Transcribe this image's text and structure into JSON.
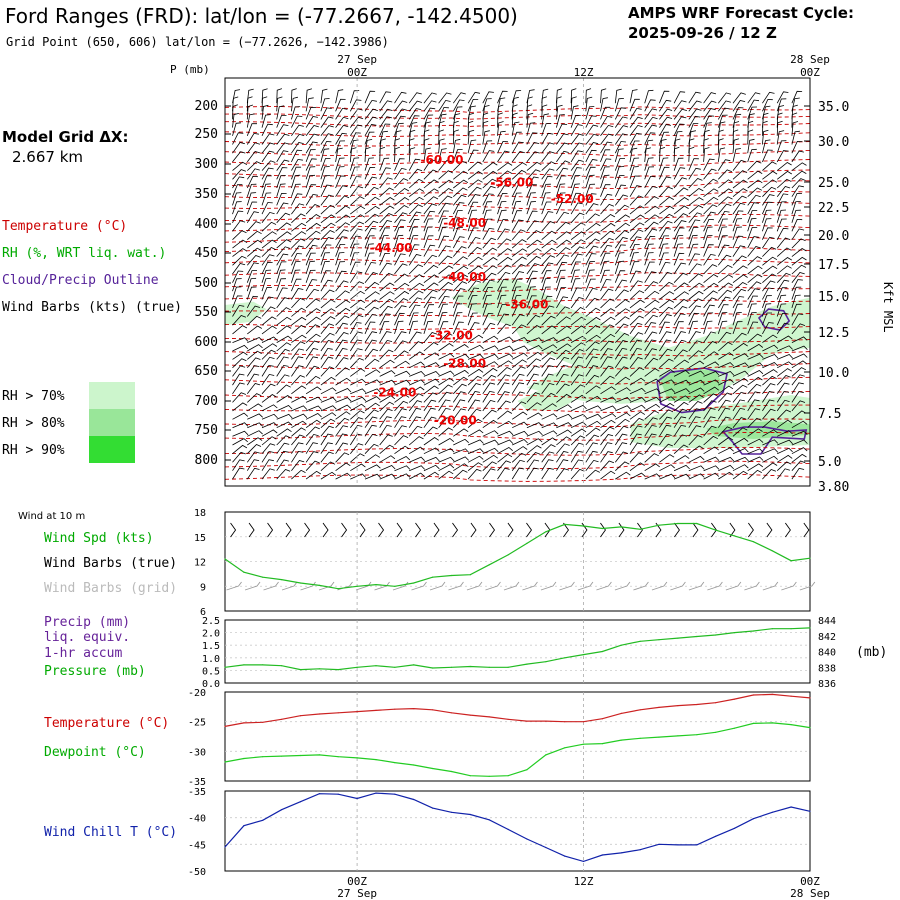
{
  "header": {
    "title": "Ford Ranges (FRD):  lat/lon = (-77.2667, -142.4500)",
    "grid_point": "Grid Point (650, 606) lat/lon = (−77.2626, −142.3986)",
    "cycle_label": "AMPS WRF Forecast Cycle:",
    "cycle_value": "2025-09-26 / 12  Z"
  },
  "side": {
    "model_grid_label": "Model Grid ΔX:",
    "model_grid_value": "2.667 km",
    "legend_temperature": "Temperature (°C)",
    "legend_rh": "RH (%, WRT liq. wat.)",
    "legend_cloud": "Cloud/Precip Outline",
    "legend_wind": "Wind Barbs (kts) (true)",
    "rh_levels": [
      "RH > 70%",
      "RH > 80%",
      "RH > 90%"
    ],
    "rh_colors": [
      "#ccf5cc",
      "#99e699",
      "#33dd33"
    ]
  },
  "time_axis": {
    "top": [
      {
        "time": "00Z",
        "date": "27 Sep",
        "h": 0
      },
      {
        "time": "12Z",
        "date": "",
        "h": 12
      },
      {
        "time": "00Z",
        "date": "28 Sep",
        "h": 24
      }
    ],
    "bottom": [
      {
        "time": "00Z",
        "date": "27 Sep",
        "h": 0
      },
      {
        "time": "12Z",
        "date": "",
        "h": 12
      },
      {
        "time": "00Z",
        "date": "28 Sep",
        "h": 24
      }
    ]
  },
  "chart_data": [
    {
      "type": "line",
      "name": "profile",
      "xlim": [
        -7,
        24
      ],
      "ylabel": "P (mb)",
      "ylabel_right": "Kft MSL",
      "pressure_ticks": [
        200,
        250,
        300,
        350,
        400,
        450,
        500,
        550,
        600,
        650,
        700,
        750,
        800
      ],
      "height_ticks": [
        "35.0",
        "30.0",
        "25.0",
        "22.5",
        "20.0",
        "17.5",
        "15.0",
        "12.5",
        "10.0",
        "7.5",
        "5.0",
        "3.80"
      ],
      "isotherm_labels": [
        {
          "text": "-60.00",
          "h": 4.5,
          "p": 293
        },
        {
          "text": "-56.00",
          "h": 8.2,
          "p": 331
        },
        {
          "text": "-52.00",
          "h": 11.4,
          "p": 358
        },
        {
          "text": "-48.00",
          "h": 5.7,
          "p": 398
        },
        {
          "text": "-44.00",
          "h": 1.8,
          "p": 441
        },
        {
          "text": "-40.00",
          "h": 5.7,
          "p": 490
        },
        {
          "text": "-36.00",
          "h": 9.0,
          "p": 537
        },
        {
          "text": "-32.00",
          "h": 5.0,
          "p": 589
        },
        {
          "text": "-28.00",
          "h": 5.7,
          "p": 637
        },
        {
          "text": "-24.00",
          "h": 2.0,
          "p": 686
        },
        {
          "text": "-20.00",
          "h": 5.2,
          "p": 734
        }
      ]
    },
    {
      "type": "line",
      "name": "wind10m",
      "panel_label": "Wind at 10 m",
      "labels": [
        "Wind Spd (kts)",
        "Wind Barbs (true)",
        "Wind Barbs (grid)"
      ],
      "ylim": [
        6,
        18
      ],
      "yticks": [
        6,
        9,
        12,
        15,
        18
      ],
      "x": [
        -7,
        -6,
        -5,
        -4,
        -3,
        -2,
        -1,
        0,
        1,
        2,
        3,
        4,
        5,
        6,
        7,
        8,
        9,
        10,
        11,
        12,
        13,
        14,
        15,
        16,
        17,
        18,
        19,
        20,
        21,
        22,
        23,
        24
      ],
      "series": [
        {
          "values": [
            12.3,
            10.7,
            10.1,
            9.8,
            9.4,
            9.1,
            8.7,
            9.0,
            9.2,
            9.0,
            9.4,
            10.1,
            10.3,
            10.4,
            11.6,
            12.8,
            14.2,
            15.6,
            16.5,
            16.3,
            16.0,
            16.2,
            15.9,
            16.4,
            16.6,
            16.6,
            15.8,
            15.1,
            14.4,
            13.3,
            12.1,
            12.4
          ]
        }
      ]
    },
    {
      "type": "line",
      "name": "precip_pressure",
      "labels": [
        "Precip (mm)",
        "liq. equiv.",
        "1-hr accum",
        "Pressure (mb)"
      ],
      "ylim_left": [
        0,
        2.5
      ],
      "yticks_left": [
        "0.0",
        "0.5",
        "1.0",
        "1.5",
        "2.0",
        "2.5"
      ],
      "ylim_right": [
        836,
        844
      ],
      "yticks_right": [
        836,
        838,
        840,
        842,
        844
      ],
      "unit_right": "(mb)",
      "x": [
        -7,
        -6,
        -5,
        -4,
        -3,
        -2,
        -1,
        0,
        1,
        2,
        3,
        4,
        5,
        6,
        7,
        8,
        9,
        10,
        11,
        12,
        13,
        14,
        15,
        16,
        17,
        18,
        19,
        20,
        21,
        22,
        23,
        24
      ],
      "series": [
        {
          "name": "Pressure (mb)",
          "values": [
            838.0,
            838.3,
            838.3,
            838.2,
            837.7,
            837.8,
            837.7,
            838.0,
            838.2,
            838.0,
            838.3,
            837.9,
            838.0,
            838.1,
            838.0,
            838.0,
            838.4,
            838.7,
            839.2,
            839.6,
            840.0,
            840.8,
            841.3,
            841.5,
            841.7,
            841.9,
            842.1,
            842.4,
            842.6,
            842.9,
            842.9,
            843.0
          ]
        }
      ]
    },
    {
      "type": "line",
      "name": "temp_dewpoint",
      "labels": [
        "Temperature (°C)",
        "Dewpoint (°C)"
      ],
      "ylim": [
        -35,
        -20
      ],
      "yticks": [
        -35,
        -30,
        -25,
        -20
      ],
      "x": [
        -7,
        -6,
        -5,
        -4,
        -3,
        -2,
        -1,
        0,
        1,
        2,
        3,
        4,
        5,
        6,
        7,
        8,
        9,
        10,
        11,
        12,
        13,
        14,
        15,
        16,
        17,
        18,
        19,
        20,
        21,
        22,
        23,
        24
      ],
      "series": [
        {
          "name": "Temperature (°C)",
          "color": "#cc0000",
          "values": [
            -25.8,
            -25.2,
            -25.1,
            -24.6,
            -24.0,
            -23.7,
            -23.5,
            -23.3,
            -23.1,
            -22.9,
            -22.8,
            -23.0,
            -23.5,
            -23.9,
            -24.2,
            -24.6,
            -24.9,
            -24.9,
            -25.0,
            -25.0,
            -24.5,
            -23.6,
            -23.0,
            -22.6,
            -22.3,
            -22.1,
            -21.8,
            -21.2,
            -20.5,
            -20.4,
            -20.7,
            -21.0
          ]
        },
        {
          "name": "Dewpoint (°C)",
          "color": "#00cc00",
          "values": [
            -31.8,
            -31.2,
            -30.9,
            -30.8,
            -30.7,
            -30.6,
            -30.9,
            -31.1,
            -31.4,
            -31.9,
            -32.3,
            -32.9,
            -33.4,
            -34.1,
            -34.2,
            -34.1,
            -33.1,
            -30.6,
            -29.4,
            -28.8,
            -28.7,
            -28.1,
            -27.8,
            -27.6,
            -27.4,
            -27.2,
            -26.8,
            -26.1,
            -25.3,
            -25.2,
            -25.5,
            -26.0
          ]
        }
      ]
    },
    {
      "type": "line",
      "name": "wind_chill",
      "labels": [
        "Wind Chill T (°C)"
      ],
      "ylim": [
        -50,
        -35
      ],
      "yticks": [
        -50,
        -45,
        -40,
        -35
      ],
      "x": [
        -7,
        -6,
        -5,
        -4,
        -3,
        -2,
        -1,
        0,
        1,
        2,
        3,
        4,
        5,
        6,
        7,
        8,
        9,
        10,
        11,
        12,
        13,
        14,
        15,
        16,
        17,
        18,
        19,
        20,
        21,
        22,
        23,
        24
      ],
      "series": [
        {
          "name": "Wind Chill T (°C)",
          "color": "#1122aa",
          "values": [
            -45.5,
            -41.5,
            -40.5,
            -38.5,
            -37.0,
            -35.5,
            -35.6,
            -36.4,
            -35.4,
            -35.6,
            -36.6,
            -38.2,
            -39.0,
            -39.4,
            -40.4,
            -42.2,
            -44.0,
            -45.6,
            -47.2,
            -48.2,
            -47.0,
            -46.6,
            -46.0,
            -45.0,
            -45.1,
            -45.1,
            -43.5,
            -42.0,
            -40.2,
            -39.0,
            -38.0,
            -38.8
          ]
        }
      ]
    }
  ]
}
